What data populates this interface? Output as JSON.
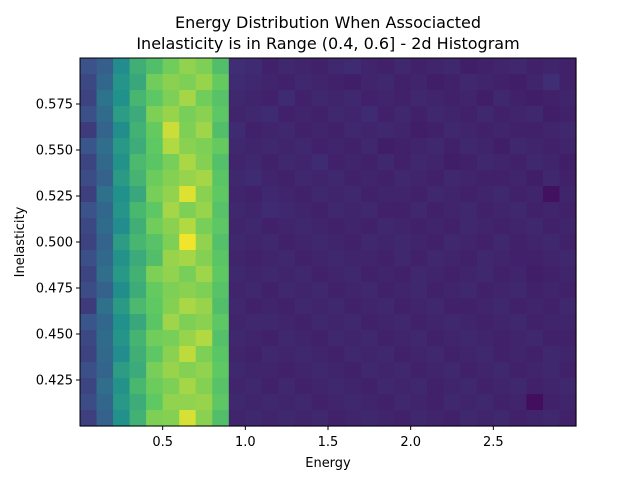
{
  "chart_data": {
    "type": "heatmap",
    "title_line1": "Energy Distribution When Associacted",
    "title_line2": "Inelasticity is in Range (0.4, 0.6] - 2d Histogram",
    "xlabel": "Energy",
    "ylabel": "Inelasticity",
    "xlim": [
      0.0,
      3.0
    ],
    "ylim": [
      0.4,
      0.6
    ],
    "xticks": [
      0.5,
      1.0,
      1.5,
      2.0,
      2.5
    ],
    "xtick_labels": [
      "0.5",
      "1.0",
      "1.5",
      "2.0",
      "2.5"
    ],
    "yticks": [
      0.425,
      0.45,
      0.475,
      0.5,
      0.525,
      0.55,
      0.575
    ],
    "ytick_labels": [
      "0.425",
      "0.450",
      "0.475",
      "0.500",
      "0.525",
      "0.550",
      "0.575"
    ],
    "bins": {
      "x": 30,
      "y": 23
    },
    "colormap": "viridis",
    "row_order": "top_to_bottom",
    "counts": [
      [
        0.25,
        0.3,
        0.48,
        0.63,
        0.7,
        0.78,
        0.83,
        0.8,
        0.7,
        0.14,
        0.13,
        0.1,
        0.12,
        0.11,
        0.1,
        0.12,
        0.13,
        0.11,
        0.1,
        0.12,
        0.1,
        0.11,
        0.12,
        0.09,
        0.1,
        0.11,
        0.12,
        0.1,
        0.11,
        0.1
      ],
      [
        0.22,
        0.33,
        0.52,
        0.6,
        0.78,
        0.82,
        0.8,
        0.84,
        0.76,
        0.13,
        0.12,
        0.11,
        0.1,
        0.12,
        0.11,
        0.1,
        0.09,
        0.11,
        0.12,
        0.1,
        0.11,
        0.09,
        0.1,
        0.12,
        0.11,
        0.1,
        0.09,
        0.11,
        0.14,
        0.1
      ],
      [
        0.2,
        0.38,
        0.5,
        0.66,
        0.74,
        0.8,
        0.86,
        0.78,
        0.72,
        0.12,
        0.11,
        0.1,
        0.13,
        0.1,
        0.12,
        0.11,
        0.12,
        0.1,
        0.11,
        0.1,
        0.12,
        0.11,
        0.1,
        0.11,
        0.09,
        0.12,
        0.1,
        0.09,
        0.1,
        0.11
      ],
      [
        0.24,
        0.35,
        0.55,
        0.61,
        0.8,
        0.84,
        0.79,
        0.82,
        0.74,
        0.11,
        0.12,
        0.13,
        0.1,
        0.11,
        0.1,
        0.12,
        0.11,
        0.13,
        0.1,
        0.12,
        0.1,
        0.12,
        0.11,
        0.1,
        0.12,
        0.1,
        0.11,
        0.12,
        0.09,
        0.1
      ],
      [
        0.18,
        0.32,
        0.49,
        0.64,
        0.76,
        0.92,
        0.8,
        0.85,
        0.7,
        0.13,
        0.1,
        0.11,
        0.12,
        0.1,
        0.11,
        0.1,
        0.12,
        0.11,
        0.12,
        0.11,
        0.09,
        0.1,
        0.12,
        0.11,
        0.1,
        0.11,
        0.1,
        0.1,
        0.11,
        0.12
      ],
      [
        0.26,
        0.36,
        0.53,
        0.62,
        0.75,
        0.88,
        0.82,
        0.8,
        0.76,
        0.12,
        0.11,
        0.12,
        0.11,
        0.12,
        0.1,
        0.11,
        0.1,
        0.12,
        0.09,
        0.1,
        0.11,
        0.12,
        0.1,
        0.12,
        0.11,
        0.09,
        0.12,
        0.11,
        0.1,
        0.11
      ],
      [
        0.21,
        0.34,
        0.51,
        0.68,
        0.73,
        0.79,
        0.87,
        0.81,
        0.71,
        0.11,
        0.12,
        0.1,
        0.12,
        0.11,
        0.13,
        0.1,
        0.11,
        0.1,
        0.12,
        0.1,
        0.12,
        0.11,
        0.09,
        0.1,
        0.12,
        0.11,
        0.1,
        0.12,
        0.11,
        0.09
      ],
      [
        0.23,
        0.31,
        0.54,
        0.65,
        0.77,
        0.81,
        0.84,
        0.86,
        0.73,
        0.12,
        0.13,
        0.11,
        0.1,
        0.12,
        0.11,
        0.12,
        0.1,
        0.11,
        0.1,
        0.12,
        0.11,
        0.1,
        0.12,
        0.11,
        0.1,
        0.1,
        0.11,
        0.09,
        0.12,
        0.1
      ],
      [
        0.19,
        0.37,
        0.5,
        0.6,
        0.79,
        0.83,
        0.95,
        0.82,
        0.75,
        0.11,
        0.1,
        0.12,
        0.11,
        0.1,
        0.12,
        0.11,
        0.12,
        0.1,
        0.11,
        0.11,
        0.1,
        0.12,
        0.11,
        0.1,
        0.11,
        0.12,
        0.1,
        0.11,
        0.05,
        0.11
      ],
      [
        0.25,
        0.33,
        0.52,
        0.67,
        0.74,
        0.86,
        0.8,
        0.84,
        0.72,
        0.12,
        0.11,
        0.13,
        0.12,
        0.11,
        0.1,
        0.12,
        0.11,
        0.12,
        0.1,
        0.1,
        0.12,
        0.1,
        0.11,
        0.12,
        0.1,
        0.11,
        0.12,
        0.1,
        0.11,
        0.1
      ],
      [
        0.22,
        0.35,
        0.48,
        0.63,
        0.78,
        0.82,
        0.88,
        0.79,
        0.74,
        0.11,
        0.12,
        0.1,
        0.11,
        0.12,
        0.11,
        0.1,
        0.11,
        0.1,
        0.12,
        0.11,
        0.1,
        0.11,
        0.1,
        0.12,
        0.11,
        0.1,
        0.11,
        0.12,
        0.1,
        0.11
      ],
      [
        0.2,
        0.32,
        0.55,
        0.66,
        0.72,
        0.8,
        0.98,
        0.83,
        0.71,
        0.12,
        0.11,
        0.12,
        0.1,
        0.11,
        0.12,
        0.11,
        0.1,
        0.12,
        0.11,
        0.12,
        0.11,
        0.1,
        0.12,
        0.11,
        0.1,
        0.12,
        0.1,
        0.11,
        0.12,
        0.1
      ],
      [
        0.24,
        0.34,
        0.51,
        0.61,
        0.7,
        0.84,
        0.86,
        0.81,
        0.73,
        0.11,
        0.1,
        0.11,
        0.12,
        0.1,
        0.11,
        0.12,
        0.11,
        0.11,
        0.1,
        0.12,
        0.1,
        0.12,
        0.11,
        0.1,
        0.12,
        0.11,
        0.1,
        0.1,
        0.11,
        0.12
      ],
      [
        0.21,
        0.36,
        0.53,
        0.64,
        0.8,
        0.83,
        0.79,
        0.85,
        0.75,
        0.12,
        0.11,
        0.12,
        0.11,
        0.12,
        0.1,
        0.11,
        0.12,
        0.1,
        0.11,
        0.1,
        0.12,
        0.11,
        0.1,
        0.11,
        0.12,
        0.1,
        0.11,
        0.09,
        0.1,
        0.11
      ],
      [
        0.23,
        0.31,
        0.49,
        0.62,
        0.76,
        0.8,
        0.82,
        0.8,
        0.72,
        0.11,
        0.12,
        0.1,
        0.12,
        0.11,
        0.12,
        0.1,
        0.11,
        0.12,
        0.1,
        0.11,
        0.12,
        0.1,
        0.11,
        0.12,
        0.1,
        0.11,
        0.12,
        0.1,
        0.11,
        0.1
      ],
      [
        0.18,
        0.37,
        0.54,
        0.68,
        0.75,
        0.81,
        0.87,
        0.84,
        0.7,
        0.12,
        0.1,
        0.11,
        0.1,
        0.12,
        0.11,
        0.12,
        0.1,
        0.11,
        0.12,
        0.1,
        0.11,
        0.12,
        0.1,
        0.1,
        0.11,
        0.12,
        0.1,
        0.11,
        0.1,
        0.12
      ],
      [
        0.26,
        0.33,
        0.5,
        0.6,
        0.73,
        0.85,
        0.8,
        0.82,
        0.74,
        0.11,
        0.12,
        0.12,
        0.11,
        0.1,
        0.12,
        0.11,
        0.12,
        0.1,
        0.11,
        0.12,
        0.1,
        0.11,
        0.12,
        0.11,
        0.1,
        0.11,
        0.12,
        0.1,
        0.11,
        0.11
      ],
      [
        0.22,
        0.35,
        0.52,
        0.65,
        0.78,
        0.79,
        0.84,
        0.88,
        0.71,
        0.12,
        0.11,
        0.1,
        0.12,
        0.11,
        0.1,
        0.12,
        0.11,
        0.12,
        0.1,
        0.11,
        0.12,
        0.1,
        0.11,
        0.12,
        0.11,
        0.1,
        0.11,
        0.12,
        0.1,
        0.1
      ],
      [
        0.2,
        0.34,
        0.48,
        0.63,
        0.74,
        0.82,
        0.9,
        0.8,
        0.73,
        0.11,
        0.1,
        0.12,
        0.11,
        0.12,
        0.11,
        0.1,
        0.12,
        0.11,
        0.12,
        0.1,
        0.11,
        0.12,
        0.1,
        0.11,
        0.12,
        0.1,
        0.11,
        0.1,
        0.12,
        0.11
      ],
      [
        0.24,
        0.32,
        0.55,
        0.61,
        0.79,
        0.84,
        0.81,
        0.83,
        0.75,
        0.12,
        0.11,
        0.11,
        0.1,
        0.11,
        0.12,
        0.11,
        0.1,
        0.12,
        0.11,
        0.12,
        0.1,
        0.11,
        0.12,
        0.1,
        0.11,
        0.12,
        0.1,
        0.11,
        0.12,
        0.1
      ],
      [
        0.21,
        0.36,
        0.51,
        0.67,
        0.77,
        0.8,
        0.86,
        0.81,
        0.72,
        0.11,
        0.12,
        0.1,
        0.12,
        0.1,
        0.11,
        0.12,
        0.11,
        0.1,
        0.12,
        0.11,
        0.12,
        0.1,
        0.11,
        0.12,
        0.1,
        0.11,
        0.12,
        0.1,
        0.11,
        0.12
      ],
      [
        0.23,
        0.33,
        0.53,
        0.62,
        0.75,
        0.83,
        0.83,
        0.84,
        0.74,
        0.12,
        0.11,
        0.12,
        0.11,
        0.12,
        0.1,
        0.11,
        0.12,
        0.11,
        0.1,
        0.12,
        0.11,
        0.1,
        0.12,
        0.11,
        0.12,
        0.1,
        0.11,
        0.04,
        0.1,
        0.11
      ],
      [
        0.19,
        0.31,
        0.5,
        0.64,
        0.8,
        0.81,
        0.94,
        0.82,
        0.7,
        0.11,
        0.12,
        0.11,
        0.12,
        0.11,
        0.12,
        0.1,
        0.11,
        0.12,
        0.11,
        0.1,
        0.12,
        0.11,
        0.1,
        0.12,
        0.11,
        0.12,
        0.1,
        0.11,
        0.12,
        0.1
      ]
    ]
  }
}
